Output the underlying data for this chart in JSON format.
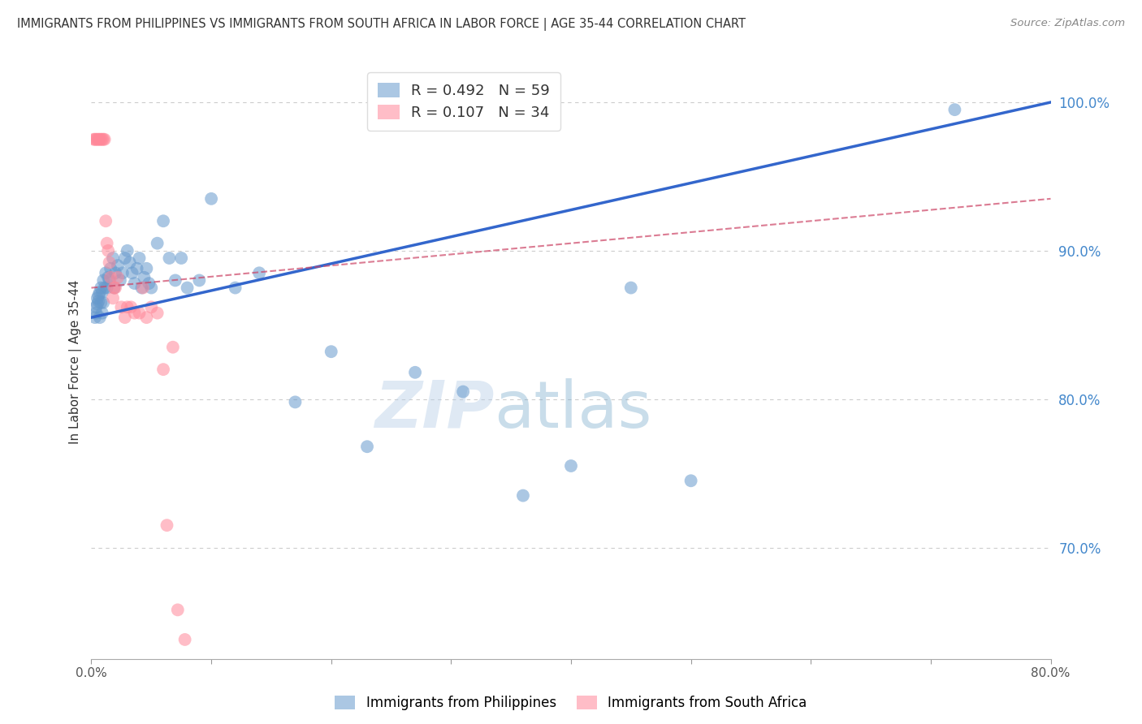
{
  "title": "IMMIGRANTS FROM PHILIPPINES VS IMMIGRANTS FROM SOUTH AFRICA IN LABOR FORCE | AGE 35-44 CORRELATION CHART",
  "source": "Source: ZipAtlas.com",
  "ylabel": "In Labor Force | Age 35-44",
  "xlim": [
    0.0,
    0.8
  ],
  "ylim": [
    0.625,
    1.025
  ],
  "yticks_right": [
    0.7,
    0.8,
    0.9,
    1.0
  ],
  "ytick_right_labels": [
    "70.0%",
    "80.0%",
    "90.0%",
    "100.0%"
  ],
  "grid_color": "#cccccc",
  "background_color": "#ffffff",
  "philippines_color": "#6699cc",
  "south_africa_color": "#ff8899",
  "philippines_R": 0.492,
  "philippines_N": 59,
  "south_africa_R": 0.107,
  "south_africa_N": 34,
  "legend_label_philippines": "Immigrants from Philippines",
  "legend_label_south_africa": "Immigrants from South Africa",
  "blue_line_color": "#3366cc",
  "pink_line_color": "#cc4466",
  "watermark_zip": "ZIP",
  "watermark_atlas": "atlas",
  "philippines_x": [
    0.003,
    0.004,
    0.004,
    0.005,
    0.005,
    0.006,
    0.006,
    0.007,
    0.007,
    0.008,
    0.008,
    0.009,
    0.009,
    0.01,
    0.01,
    0.011,
    0.012,
    0.013,
    0.014,
    0.015,
    0.016,
    0.018,
    0.019,
    0.02,
    0.022,
    0.024,
    0.026,
    0.028,
    0.03,
    0.032,
    0.034,
    0.036,
    0.038,
    0.04,
    0.042,
    0.044,
    0.046,
    0.048,
    0.05,
    0.055,
    0.06,
    0.065,
    0.07,
    0.075,
    0.08,
    0.09,
    0.1,
    0.12,
    0.14,
    0.17,
    0.2,
    0.23,
    0.27,
    0.31,
    0.36,
    0.4,
    0.45,
    0.5,
    0.72
  ],
  "philippines_y": [
    0.855,
    0.862,
    0.858,
    0.868,
    0.864,
    0.87,
    0.866,
    0.855,
    0.872,
    0.875,
    0.865,
    0.858,
    0.872,
    0.88,
    0.865,
    0.875,
    0.885,
    0.875,
    0.882,
    0.88,
    0.888,
    0.895,
    0.875,
    0.885,
    0.89,
    0.88,
    0.885,
    0.895,
    0.9,
    0.892,
    0.885,
    0.878,
    0.888,
    0.895,
    0.875,
    0.882,
    0.888,
    0.878,
    0.875,
    0.905,
    0.92,
    0.895,
    0.88,
    0.895,
    0.875,
    0.88,
    0.935,
    0.875,
    0.885,
    0.798,
    0.832,
    0.768,
    0.818,
    0.805,
    0.735,
    0.755,
    0.875,
    0.745,
    0.995
  ],
  "south_africa_x": [
    0.002,
    0.003,
    0.004,
    0.005,
    0.006,
    0.007,
    0.008,
    0.009,
    0.01,
    0.011,
    0.012,
    0.013,
    0.014,
    0.015,
    0.016,
    0.018,
    0.019,
    0.02,
    0.022,
    0.025,
    0.028,
    0.03,
    0.033,
    0.036,
    0.04,
    0.043,
    0.046,
    0.05,
    0.055,
    0.06,
    0.063,
    0.068,
    0.072,
    0.078
  ],
  "south_africa_y": [
    0.975,
    0.975,
    0.975,
    0.975,
    0.975,
    0.975,
    0.975,
    0.975,
    0.975,
    0.975,
    0.92,
    0.905,
    0.9,
    0.892,
    0.882,
    0.868,
    0.875,
    0.875,
    0.882,
    0.862,
    0.855,
    0.862,
    0.862,
    0.858,
    0.858,
    0.875,
    0.855,
    0.862,
    0.858,
    0.82,
    0.715,
    0.835,
    0.658,
    0.638
  ],
  "blue_line_x0": 0.0,
  "blue_line_y0": 0.855,
  "blue_line_x1": 0.8,
  "blue_line_y1": 1.0,
  "pink_line_x0": 0.0,
  "pink_line_y0": 0.875,
  "pink_line_x1": 0.8,
  "pink_line_y1": 0.935
}
